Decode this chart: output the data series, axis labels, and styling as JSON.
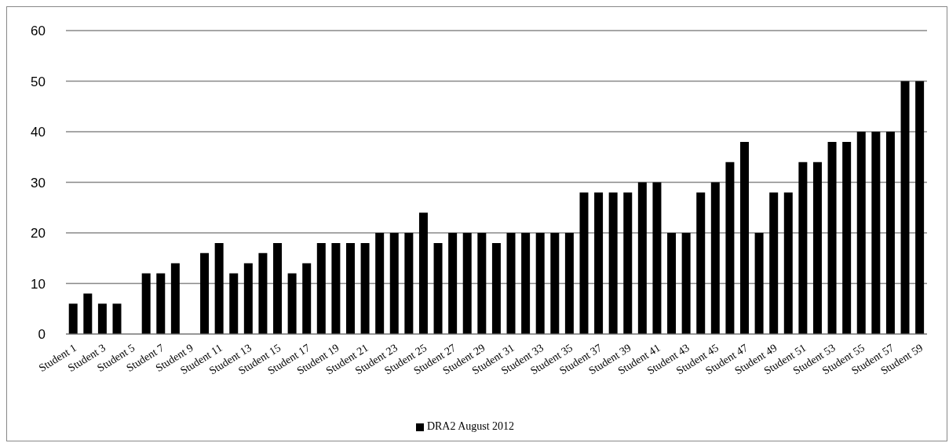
{
  "chart_data": {
    "type": "bar",
    "categories": [
      "Student 1",
      null,
      "Student 3",
      null,
      "Student 5",
      null,
      "Student 7",
      null,
      "Student 9",
      null,
      "Student 11",
      null,
      "Student 13",
      null,
      "Student 15",
      null,
      "Student 17",
      null,
      "Student 19",
      null,
      "Student 21",
      null,
      "Student 23",
      null,
      "Student 25",
      null,
      "Student 27",
      null,
      "Student 29",
      null,
      "Student 31",
      null,
      "Student 33",
      null,
      "Student 35",
      null,
      "Student 37",
      null,
      "Student 39",
      null,
      "Student 41",
      null,
      "Student 43",
      null,
      "Student 45",
      null,
      "Student 47",
      null,
      "Student 49",
      null,
      "Student 51",
      null,
      "Student 53",
      null,
      "Student 55",
      null,
      "Student 57",
      null,
      "Student 59"
    ],
    "series": [
      {
        "name": "DRA2 August 2012",
        "color": "#000000",
        "values": [
          6,
          8,
          6,
          6,
          null,
          12,
          12,
          14,
          null,
          16,
          18,
          12,
          14,
          16,
          18,
          12,
          14,
          18,
          18,
          18,
          18,
          20,
          20,
          20,
          24,
          18,
          20,
          20,
          20,
          18,
          20,
          20,
          20,
          20,
          20,
          28,
          28,
          28,
          28,
          30,
          30,
          20,
          20,
          28,
          30,
          34,
          38,
          20,
          28,
          28,
          34,
          34,
          38,
          38,
          40,
          40,
          40,
          50,
          50
        ]
      }
    ],
    "ylim": [
      0,
      60
    ],
    "yticks": [
      0,
      10,
      20,
      30,
      40,
      50,
      60
    ],
    "grid": "y",
    "legend": "bottom"
  }
}
